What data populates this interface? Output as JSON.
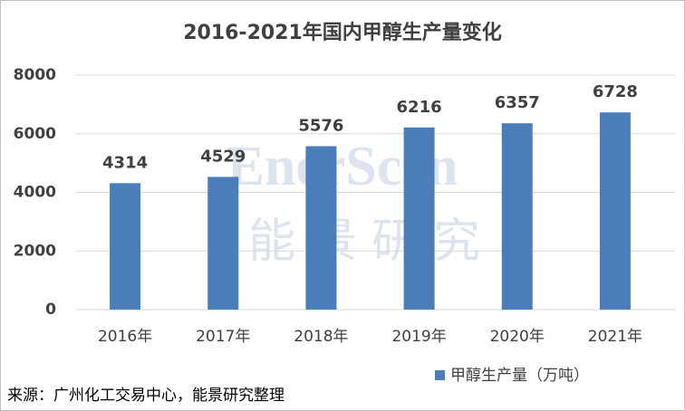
{
  "chart_data": {
    "type": "bar",
    "title": "2016-2021年国内甲醇生产量变化",
    "categories": [
      "2016年",
      "2017年",
      "2018年",
      "2019年",
      "2020年",
      "2021年"
    ],
    "series": [
      {
        "name": "甲醇生产量（万吨）",
        "color": "#4a7ebb",
        "values": [
          4314,
          4529,
          5576,
          6216,
          6357,
          6728
        ]
      }
    ],
    "ylim": [
      0,
      8000
    ],
    "yticks": [
      0,
      2000,
      4000,
      6000,
      8000
    ],
    "grid": true,
    "legend": "bottom-right",
    "watermark": [
      "EnerScen",
      "能景研究"
    ],
    "source": "来源：广州化工交易中心，能景研究整理"
  }
}
